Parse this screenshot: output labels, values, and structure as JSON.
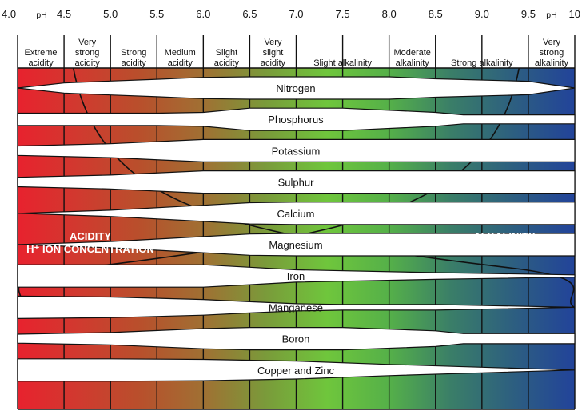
{
  "ph_scale": {
    "unit_label": "pH",
    "ticks": [
      {
        "value": 4.0,
        "label": "4.0"
      },
      {
        "value": 4.5,
        "label": "4.5"
      },
      {
        "value": 5.0,
        "label": "5.0"
      },
      {
        "value": 5.5,
        "label": "5.5"
      },
      {
        "value": 6.0,
        "label": "6.0"
      },
      {
        "value": 6.5,
        "label": "6.5"
      },
      {
        "value": 7.0,
        "label": "7.0"
      },
      {
        "value": 7.5,
        "label": "7.5"
      },
      {
        "value": 8.0,
        "label": "8.0"
      },
      {
        "value": 8.5,
        "label": "8.5"
      },
      {
        "value": 9.0,
        "label": "9.0"
      },
      {
        "value": 9.5,
        "label": "9.5"
      },
      {
        "value": 10.0,
        "label": "10"
      }
    ]
  },
  "categories": [
    {
      "from": 4.0,
      "to": 4.5,
      "lines": [
        "Extreme",
        "acidity"
      ]
    },
    {
      "from": 4.5,
      "to": 5.0,
      "lines": [
        "Very",
        "strong",
        "acidity"
      ]
    },
    {
      "from": 5.0,
      "to": 5.5,
      "lines": [
        "Strong",
        "acidity"
      ]
    },
    {
      "from": 5.5,
      "to": 6.0,
      "lines": [
        "Medium",
        "acidity"
      ]
    },
    {
      "from": 6.0,
      "to": 6.5,
      "lines": [
        "Slight",
        "acidity"
      ]
    },
    {
      "from": 6.5,
      "to": 7.0,
      "lines": [
        "Very",
        "slight",
        "acidity"
      ]
    },
    {
      "from": 7.0,
      "to": 8.0,
      "lines": [
        "Slight alkalinity"
      ]
    },
    {
      "from": 8.0,
      "to": 8.5,
      "lines": [
        "Moderate",
        "alkalinity"
      ]
    },
    {
      "from": 8.5,
      "to": 9.5,
      "lines": [
        "Strong alkalinity"
      ]
    },
    {
      "from": 9.5,
      "to": 10.0,
      "lines": [
        "Very",
        "strong",
        "alkalinity"
      ]
    }
  ],
  "nutrients": [
    {
      "name": "Nitrogen",
      "availability": [
        [
          4.0,
          0.0
        ],
        [
          4.5,
          0.45
        ],
        [
          5.0,
          0.62
        ],
        [
          5.5,
          0.78
        ],
        [
          6.0,
          0.95
        ],
        [
          6.5,
          1.0
        ],
        [
          8.0,
          1.0
        ],
        [
          8.5,
          0.82
        ],
        [
          9.5,
          0.6
        ],
        [
          10.0,
          0.0
        ]
      ]
    },
    {
      "name": "Phosphorus",
      "availability": [
        [
          4.0,
          0.55
        ],
        [
          4.5,
          0.55
        ],
        [
          5.0,
          0.55
        ],
        [
          5.5,
          0.55
        ],
        [
          6.0,
          0.62
        ],
        [
          6.5,
          1.0
        ],
        [
          7.5,
          1.0
        ],
        [
          8.5,
          0.62
        ],
        [
          8.8,
          0.4
        ],
        [
          9.5,
          0.4
        ],
        [
          10.0,
          0.4
        ]
      ]
    },
    {
      "name": "Potassium",
      "availability": [
        [
          4.0,
          0.42
        ],
        [
          5.0,
          0.62
        ],
        [
          6.0,
          1.0
        ],
        [
          10.0,
          1.0
        ]
      ]
    },
    {
      "name": "Sulphur",
      "availability": [
        [
          4.0,
          0.42
        ],
        [
          5.0,
          0.62
        ],
        [
          6.0,
          1.0
        ],
        [
          10.0,
          1.0
        ]
      ]
    },
    {
      "name": "Calcium",
      "availability": [
        [
          4.0,
          0.0
        ],
        [
          5.0,
          0.28
        ],
        [
          6.0,
          0.72
        ],
        [
          6.5,
          0.95
        ],
        [
          7.0,
          1.0
        ],
        [
          10.0,
          1.0
        ]
      ]
    },
    {
      "name": "Magnesium",
      "availability": [
        [
          4.0,
          0.0
        ],
        [
          5.0,
          0.28
        ],
        [
          6.0,
          0.72
        ],
        [
          6.5,
          0.95
        ],
        [
          7.0,
          1.0
        ],
        [
          10.0,
          1.0
        ]
      ]
    },
    {
      "name": "Iron",
      "availability": [
        [
          4.0,
          1.0
        ],
        [
          6.0,
          1.0
        ],
        [
          6.5,
          0.78
        ],
        [
          7.0,
          0.55
        ],
        [
          8.5,
          0.3
        ],
        [
          10.0,
          0.1
        ]
      ]
    },
    {
      "name": "Manganese",
      "availability": [
        [
          4.0,
          1.0
        ],
        [
          5.0,
          0.92
        ],
        [
          6.0,
          0.7
        ],
        [
          6.5,
          0.5
        ],
        [
          7.0,
          0.32
        ],
        [
          7.5,
          0.25
        ],
        [
          8.5,
          0.25
        ],
        [
          10.0,
          0.0
        ]
      ]
    },
    {
      "name": "Boron",
      "availability": [
        [
          4.0,
          0.4
        ],
        [
          5.0,
          0.55
        ],
        [
          6.0,
          0.9
        ],
        [
          6.5,
          1.0
        ],
        [
          7.5,
          1.0
        ],
        [
          8.5,
          0.7
        ],
        [
          8.8,
          0.45
        ],
        [
          10.0,
          0.45
        ]
      ]
    },
    {
      "name": "Copper and Zinc",
      "availability": [
        [
          4.0,
          1.0
        ],
        [
          5.0,
          1.0
        ],
        [
          6.0,
          0.95
        ],
        [
          7.0,
          0.8
        ],
        [
          8.0,
          0.5
        ],
        [
          9.0,
          0.25
        ],
        [
          10.0,
          0.0
        ]
      ]
    }
  ],
  "annotations": {
    "acidity": {
      "title": "ACIDITY",
      "subtitle": "H⁺ ION CONCENTRATION"
    },
    "alkalinity": {
      "title": "ALKALINITY",
      "subtitle": "OH⁻ ION CONCENTRATION"
    }
  },
  "colors": {
    "gradient": [
      "#e8222e",
      "#d03a2f",
      "#b8502c",
      "#a07033",
      "#7a9a3a",
      "#6fc63c",
      "#55b049",
      "#3a7e68",
      "#2d5f80",
      "#22439a"
    ],
    "band": "#ffffff",
    "ink": "#111111",
    "annotation_text": "#ffffff"
  }
}
